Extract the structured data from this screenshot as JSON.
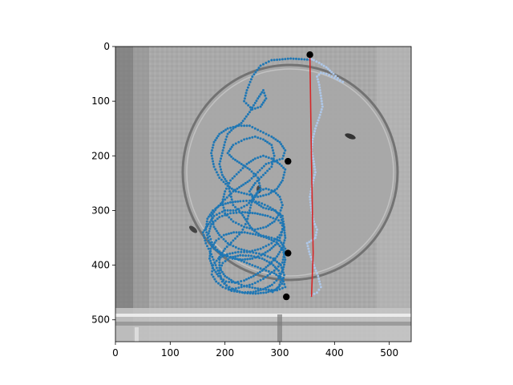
{
  "chart_data": {
    "type": "scatter",
    "title": "",
    "xlabel": "",
    "ylabel": "",
    "xlim": [
      0,
      540
    ],
    "ylim": [
      540,
      0
    ],
    "y_inverted": true,
    "grid": false,
    "legend": "none",
    "background": "grayscale arena photograph",
    "x_ticks": [
      0,
      100,
      200,
      300,
      400,
      500
    ],
    "y_ticks": [
      0,
      100,
      200,
      300,
      400,
      500
    ],
    "colors": {
      "left_trajectory": "#1f77b4",
      "right_trajectory": "#aec7e8",
      "divider_line": "#d62728",
      "marker": "#000000"
    },
    "series": [
      {
        "kind": "trajectory-left",
        "points": [
          [
            355,
            24
          ],
          [
            320,
            22
          ],
          [
            285,
            25
          ],
          [
            265,
            35
          ],
          [
            250,
            55
          ],
          [
            240,
            80
          ],
          [
            235,
            100
          ],
          [
            250,
            115
          ],
          [
            265,
            110
          ],
          [
            275,
            95
          ],
          [
            270,
            80
          ],
          [
            260,
            95
          ],
          [
            245,
            120
          ],
          [
            230,
            140
          ],
          [
            215,
            150
          ],
          [
            205,
            160
          ],
          [
            200,
            175
          ],
          [
            195,
            195
          ],
          [
            190,
            215
          ],
          [
            195,
            235
          ],
          [
            205,
            250
          ],
          [
            210,
            270
          ],
          [
            215,
            290
          ],
          [
            230,
            305
          ],
          [
            240,
            320
          ],
          [
            250,
            335
          ],
          [
            265,
            345
          ],
          [
            285,
            350
          ],
          [
            300,
            355
          ],
          [
            310,
            370
          ],
          [
            305,
            395
          ],
          [
            290,
            410
          ],
          [
            270,
            425
          ],
          [
            250,
            435
          ],
          [
            230,
            440
          ],
          [
            210,
            445
          ],
          [
            195,
            430
          ],
          [
            185,
            405
          ],
          [
            175,
            380
          ],
          [
            165,
            360
          ],
          [
            160,
            340
          ],
          [
            170,
            325
          ],
          [
            180,
            310
          ],
          [
            200,
            300
          ],
          [
            220,
            300
          ],
          [
            240,
            290
          ],
          [
            255,
            275
          ],
          [
            265,
            260
          ],
          [
            260,
            240
          ],
          [
            245,
            225
          ],
          [
            230,
            215
          ],
          [
            215,
            205
          ],
          [
            205,
            195
          ],
          [
            215,
            180
          ],
          [
            235,
            170
          ],
          [
            255,
            165
          ],
          [
            270,
            170
          ],
          [
            285,
            180
          ],
          [
            290,
            200
          ],
          [
            285,
            220
          ],
          [
            270,
            235
          ],
          [
            255,
            250
          ],
          [
            245,
            265
          ],
          [
            255,
            285
          ],
          [
            270,
            295
          ],
          [
            290,
            300
          ],
          [
            305,
            310
          ],
          [
            308,
            330
          ],
          [
            300,
            345
          ],
          [
            285,
            360
          ],
          [
            265,
            370
          ],
          [
            245,
            375
          ],
          [
            225,
            370
          ],
          [
            205,
            360
          ],
          [
            190,
            345
          ],
          [
            180,
            330
          ],
          [
            175,
            310
          ],
          [
            185,
            295
          ],
          [
            200,
            280
          ],
          [
            215,
            265
          ],
          [
            230,
            255
          ],
          [
            245,
            245
          ],
          [
            260,
            230
          ],
          [
            275,
            215
          ],
          [
            290,
            210
          ],
          [
            305,
            205
          ],
          [
            310,
            190
          ],
          [
            300,
            175
          ],
          [
            285,
            165
          ],
          [
            265,
            155
          ],
          [
            245,
            145
          ],
          [
            225,
            145
          ],
          [
            205,
            150
          ],
          [
            190,
            160
          ],
          [
            180,
            175
          ],
          [
            175,
            195
          ],
          [
            180,
            220
          ],
          [
            190,
            240
          ],
          [
            205,
            255
          ],
          [
            220,
            265
          ],
          [
            240,
            270
          ],
          [
            260,
            275
          ],
          [
            280,
            270
          ],
          [
            295,
            260
          ],
          [
            305,
            245
          ],
          [
            310,
            225
          ],
          [
            300,
            215
          ],
          [
            285,
            205
          ],
          [
            270,
            200
          ],
          [
            255,
            205
          ],
          [
            240,
            215
          ],
          [
            225,
            230
          ],
          [
            210,
            245
          ],
          [
            200,
            265
          ],
          [
            195,
            285
          ],
          [
            200,
            305
          ],
          [
            215,
            320
          ],
          [
            235,
            330
          ],
          [
            255,
            335
          ],
          [
            275,
            330
          ],
          [
            290,
            320
          ],
          [
            300,
            305
          ],
          [
            305,
            290
          ],
          [
            300,
            275
          ],
          [
            290,
            265
          ],
          [
            275,
            260
          ],
          [
            260,
            265
          ],
          [
            250,
            280
          ],
          [
            245,
            300
          ],
          [
            240,
            320
          ],
          [
            230,
            340
          ],
          [
            215,
            355
          ],
          [
            200,
            370
          ],
          [
            190,
            385
          ],
          [
            190,
            405
          ],
          [
            200,
            420
          ],
          [
            215,
            430
          ],
          [
            235,
            438
          ],
          [
            255,
            442
          ],
          [
            275,
            445
          ],
          [
            295,
            446
          ],
          [
            310,
            440
          ],
          [
            305,
            425
          ],
          [
            290,
            415
          ],
          [
            270,
            408
          ],
          [
            250,
            400
          ],
          [
            230,
            392
          ],
          [
            210,
            385
          ],
          [
            195,
            380
          ],
          [
            180,
            370
          ],
          [
            170,
            355
          ],
          [
            165,
            335
          ],
          [
            168,
            315
          ],
          [
            178,
            300
          ],
          [
            192,
            290
          ],
          [
            210,
            285
          ],
          [
            228,
            283
          ],
          [
            245,
            282
          ],
          [
            262,
            285
          ],
          [
            278,
            292
          ],
          [
            292,
            300
          ],
          [
            302,
            312
          ],
          [
            306,
            328
          ],
          [
            303,
            345
          ],
          [
            295,
            360
          ],
          [
            282,
            372
          ],
          [
            266,
            382
          ],
          [
            250,
            388
          ],
          [
            232,
            390
          ],
          [
            214,
            388
          ],
          [
            198,
            382
          ],
          [
            186,
            372
          ],
          [
            176,
            358
          ],
          [
            170,
            342
          ],
          [
            175,
            325
          ],
          [
            190,
            312
          ],
          [
            210,
            305
          ],
          [
            232,
            303
          ],
          [
            255,
            305
          ],
          [
            278,
            310
          ],
          [
            298,
            318
          ],
          [
            308,
            332
          ],
          [
            310,
            350
          ],
          [
            305,
            368
          ],
          [
            295,
            384
          ],
          [
            282,
            398
          ],
          [
            268,
            410
          ],
          [
            252,
            420
          ],
          [
            235,
            428
          ],
          [
            218,
            432
          ],
          [
            202,
            430
          ],
          [
            188,
            420
          ],
          [
            178,
            405
          ],
          [
            172,
            388
          ],
          [
            174,
            370
          ],
          [
            184,
            355
          ],
          [
            198,
            345
          ],
          [
            216,
            340
          ],
          [
            236,
            340
          ],
          [
            256,
            344
          ],
          [
            276,
            350
          ],
          [
            294,
            358
          ],
          [
            306,
            372
          ],
          [
            310,
            390
          ],
          [
            306,
            408
          ],
          [
            298,
            424
          ],
          [
            286,
            436
          ],
          [
            270,
            444
          ],
          [
            252,
            449
          ],
          [
            232,
            450
          ],
          [
            212,
            447
          ],
          [
            196,
            440
          ],
          [
            184,
            430
          ],
          [
            176,
            417
          ],
          [
            178,
            400
          ],
          [
            188,
            388
          ],
          [
            204,
            380
          ],
          [
            224,
            376
          ],
          [
            246,
            376
          ],
          [
            268,
            380
          ],
          [
            288,
            388
          ],
          [
            302,
            400
          ],
          [
            308,
            418
          ],
          [
            304,
            434
          ],
          [
            292,
            445
          ],
          [
            275,
            450
          ],
          [
            256,
            452
          ],
          [
            236,
            451
          ],
          [
            218,
            446
          ],
          [
            203,
            437
          ],
          [
            193,
            425
          ],
          [
            190,
            410
          ],
          [
            196,
            396
          ],
          [
            210,
            386
          ],
          [
            228,
            382
          ],
          [
            248,
            383
          ],
          [
            268,
            388
          ],
          [
            285,
            397
          ],
          [
            298,
            410
          ],
          [
            303,
            426
          ],
          [
            298,
            440
          ],
          [
            287,
            449
          ]
        ]
      },
      {
        "kind": "trajectory-right",
        "points": [
          [
            355,
            22
          ],
          [
            362,
            25
          ],
          [
            372,
            30
          ],
          [
            385,
            38
          ],
          [
            398,
            50
          ],
          [
            410,
            62
          ],
          [
            415,
            65
          ],
          [
            405,
            60
          ],
          [
            395,
            55
          ],
          [
            385,
            50
          ],
          [
            375,
            48
          ],
          [
            368,
            55
          ],
          [
            372,
            70
          ],
          [
            375,
            90
          ],
          [
            378,
            110
          ],
          [
            372,
            130
          ],
          [
            365,
            150
          ],
          [
            360,
            170
          ],
          [
            358,
            190
          ],
          [
            362,
            210
          ],
          [
            365,
            230
          ],
          [
            360,
            250
          ],
          [
            355,
            275
          ],
          [
            358,
            300
          ],
          [
            362,
            320
          ],
          [
            368,
            335
          ],
          [
            365,
            350
          ],
          [
            358,
            355
          ],
          [
            350,
            360
          ],
          [
            355,
            380
          ],
          [
            362,
            400
          ],
          [
            370,
            420
          ],
          [
            375,
            440
          ],
          [
            368,
            450
          ],
          [
            358,
            455
          ]
        ]
      },
      {
        "kind": "divider-line",
        "points": [
          [
            355,
            15
          ],
          [
            358,
            210
          ],
          [
            361,
            378
          ],
          [
            358,
            458
          ]
        ]
      },
      {
        "kind": "markers",
        "points": [
          [
            355,
            15
          ],
          [
            315,
            210
          ],
          [
            315,
            378
          ],
          [
            312,
            458
          ]
        ]
      }
    ]
  }
}
